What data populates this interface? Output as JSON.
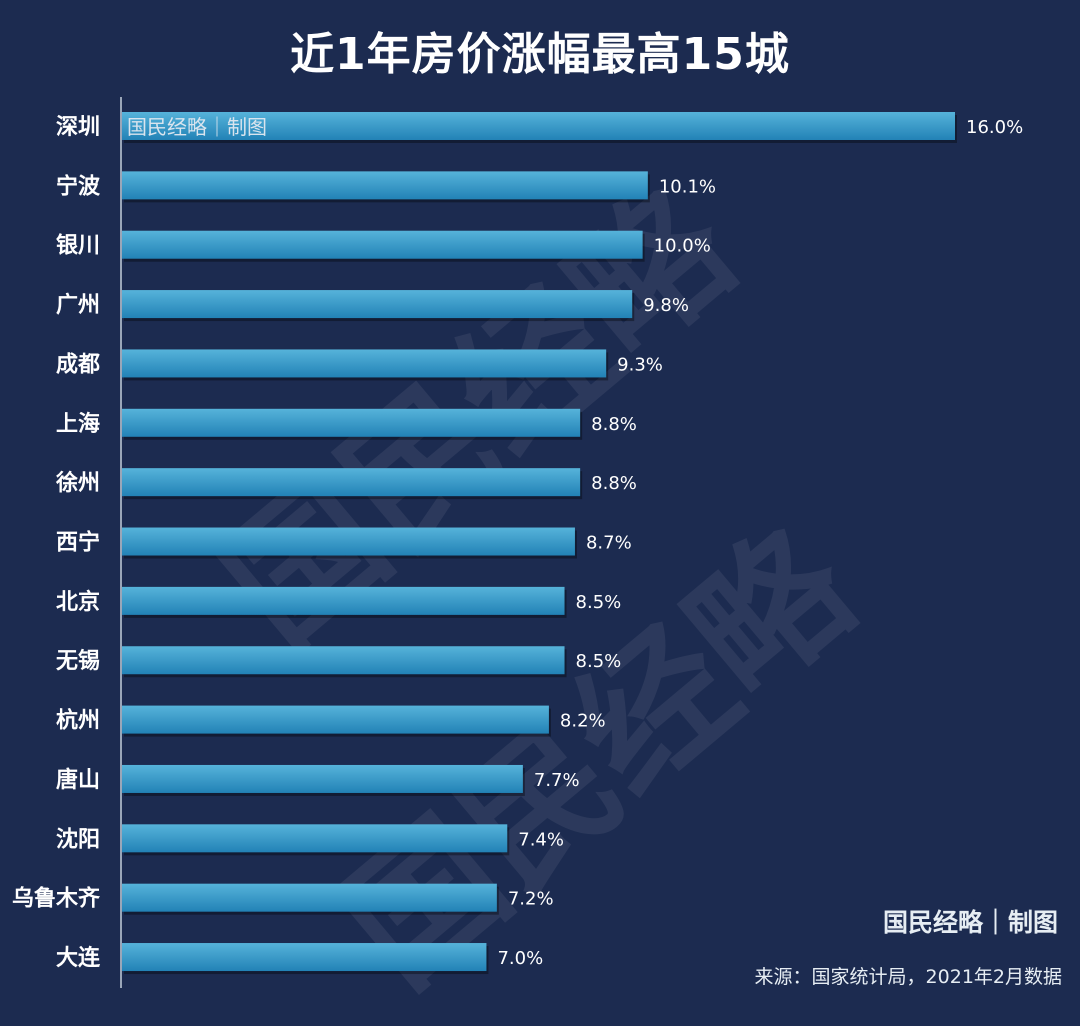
{
  "title": "近1年房价涨幅最高15城",
  "watermark": "国民经略",
  "credit": "国民经略｜制图",
  "source": "来源：国家统计局，2021年2月数据",
  "colors": {
    "background": "#1c2b50",
    "bar_top": "#52b0d8",
    "bar_bottom": "#2384b8",
    "text": "#ffffff"
  },
  "chart_data": {
    "type": "bar",
    "orientation": "horizontal",
    "title": "近1年房价涨幅最高15城",
    "categories": [
      "深圳",
      "宁波",
      "银川",
      "广州",
      "成都",
      "上海",
      "徐州",
      "西宁",
      "北京",
      "无锡",
      "杭州",
      "唐山",
      "沈阳",
      "乌鲁木齐",
      "大连"
    ],
    "values": [
      16.0,
      10.1,
      10.0,
      9.8,
      9.3,
      8.8,
      8.8,
      8.7,
      8.5,
      8.5,
      8.2,
      7.7,
      7.4,
      7.2,
      7.0
    ],
    "labels": [
      "16.0%",
      "10.1%",
      "10.0%",
      "9.8%",
      "9.3%",
      "8.8%",
      "8.8%",
      "8.7%",
      "8.5%",
      "8.5%",
      "8.2%",
      "7.7%",
      "7.4%",
      "7.2%",
      "7.0%"
    ],
    "xlim": [
      0,
      16
    ],
    "grid": false,
    "legend": "none"
  }
}
